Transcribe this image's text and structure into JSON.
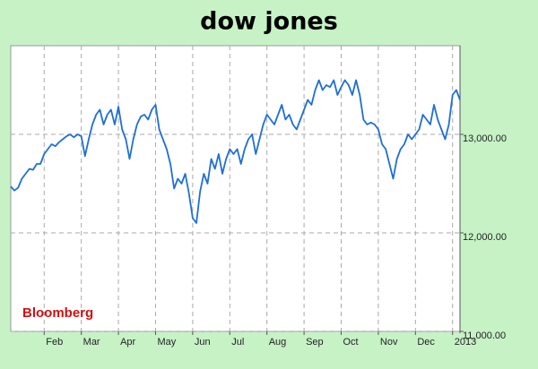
{
  "chart_data": {
    "type": "line",
    "title": "dow jones",
    "source": "Bloomberg",
    "categories": [
      null,
      null,
      null,
      null,
      null,
      null,
      null,
      null,
      null,
      "Feb",
      null,
      null,
      null,
      null,
      null,
      null,
      null,
      null,
      null,
      "Mar",
      null,
      null,
      null,
      null,
      null,
      null,
      null,
      null,
      null,
      "Apr",
      null,
      null,
      null,
      null,
      null,
      null,
      null,
      null,
      null,
      "May",
      null,
      null,
      null,
      null,
      null,
      null,
      null,
      null,
      null,
      "Jun",
      null,
      null,
      null,
      null,
      null,
      null,
      null,
      null,
      null,
      "Jul",
      null,
      null,
      null,
      null,
      null,
      null,
      null,
      null,
      null,
      "Aug",
      null,
      null,
      null,
      null,
      null,
      null,
      null,
      null,
      null,
      "Sep",
      null,
      null,
      null,
      null,
      null,
      null,
      null,
      null,
      null,
      "Oct",
      null,
      null,
      null,
      null,
      null,
      null,
      null,
      null,
      null,
      "Nov",
      null,
      null,
      null,
      null,
      null,
      null,
      null,
      null,
      null,
      "Dec",
      null,
      null,
      null,
      null,
      null,
      null,
      null,
      null,
      null,
      "2013",
      null,
      null
    ],
    "series": [
      {
        "name": "dow jones",
        "color": "#1f6fd6",
        "values": [
          12470,
          12430,
          12460,
          12550,
          12600,
          12650,
          12640,
          12700,
          12700,
          12800,
          12850,
          12900,
          12880,
          12920,
          12950,
          12980,
          13000,
          12970,
          13000,
          12980,
          12780,
          12950,
          13100,
          13200,
          13250,
          13100,
          13200,
          13250,
          13100,
          13280,
          13050,
          12950,
          12750,
          12950,
          13100,
          13180,
          13200,
          13150,
          13250,
          13300,
          13050,
          12950,
          12850,
          12700,
          12450,
          12550,
          12500,
          12600,
          12400,
          12150,
          12100,
          12420,
          12600,
          12500,
          12750,
          12650,
          12800,
          12600,
          12750,
          12850,
          12800,
          12850,
          12700,
          12850,
          12950,
          13000,
          12800,
          12950,
          13100,
          13200,
          13150,
          13100,
          13200,
          13300,
          13150,
          13200,
          13100,
          13050,
          13150,
          13250,
          13350,
          13300,
          13450,
          13550,
          13450,
          13500,
          13480,
          13550,
          13400,
          13480,
          13550,
          13500,
          13400,
          13550,
          13400,
          13150,
          13100,
          13120,
          13100,
          13050,
          12900,
          12850,
          12700,
          12550,
          12750,
          12850,
          12900,
          13000,
          12950,
          13000,
          13050,
          13200,
          13150,
          13100,
          13300,
          13150,
          13050,
          12950,
          13100,
          13400,
          13450,
          13350
        ]
      }
    ],
    "ylim": [
      11000,
      13900
    ],
    "yticks": [
      {
        "value": 11000,
        "label": "11,000.00"
      },
      {
        "value": 12000,
        "label": "12,000.00"
      },
      {
        "value": 13000,
        "label": "13,000.00"
      }
    ],
    "grid": true
  }
}
